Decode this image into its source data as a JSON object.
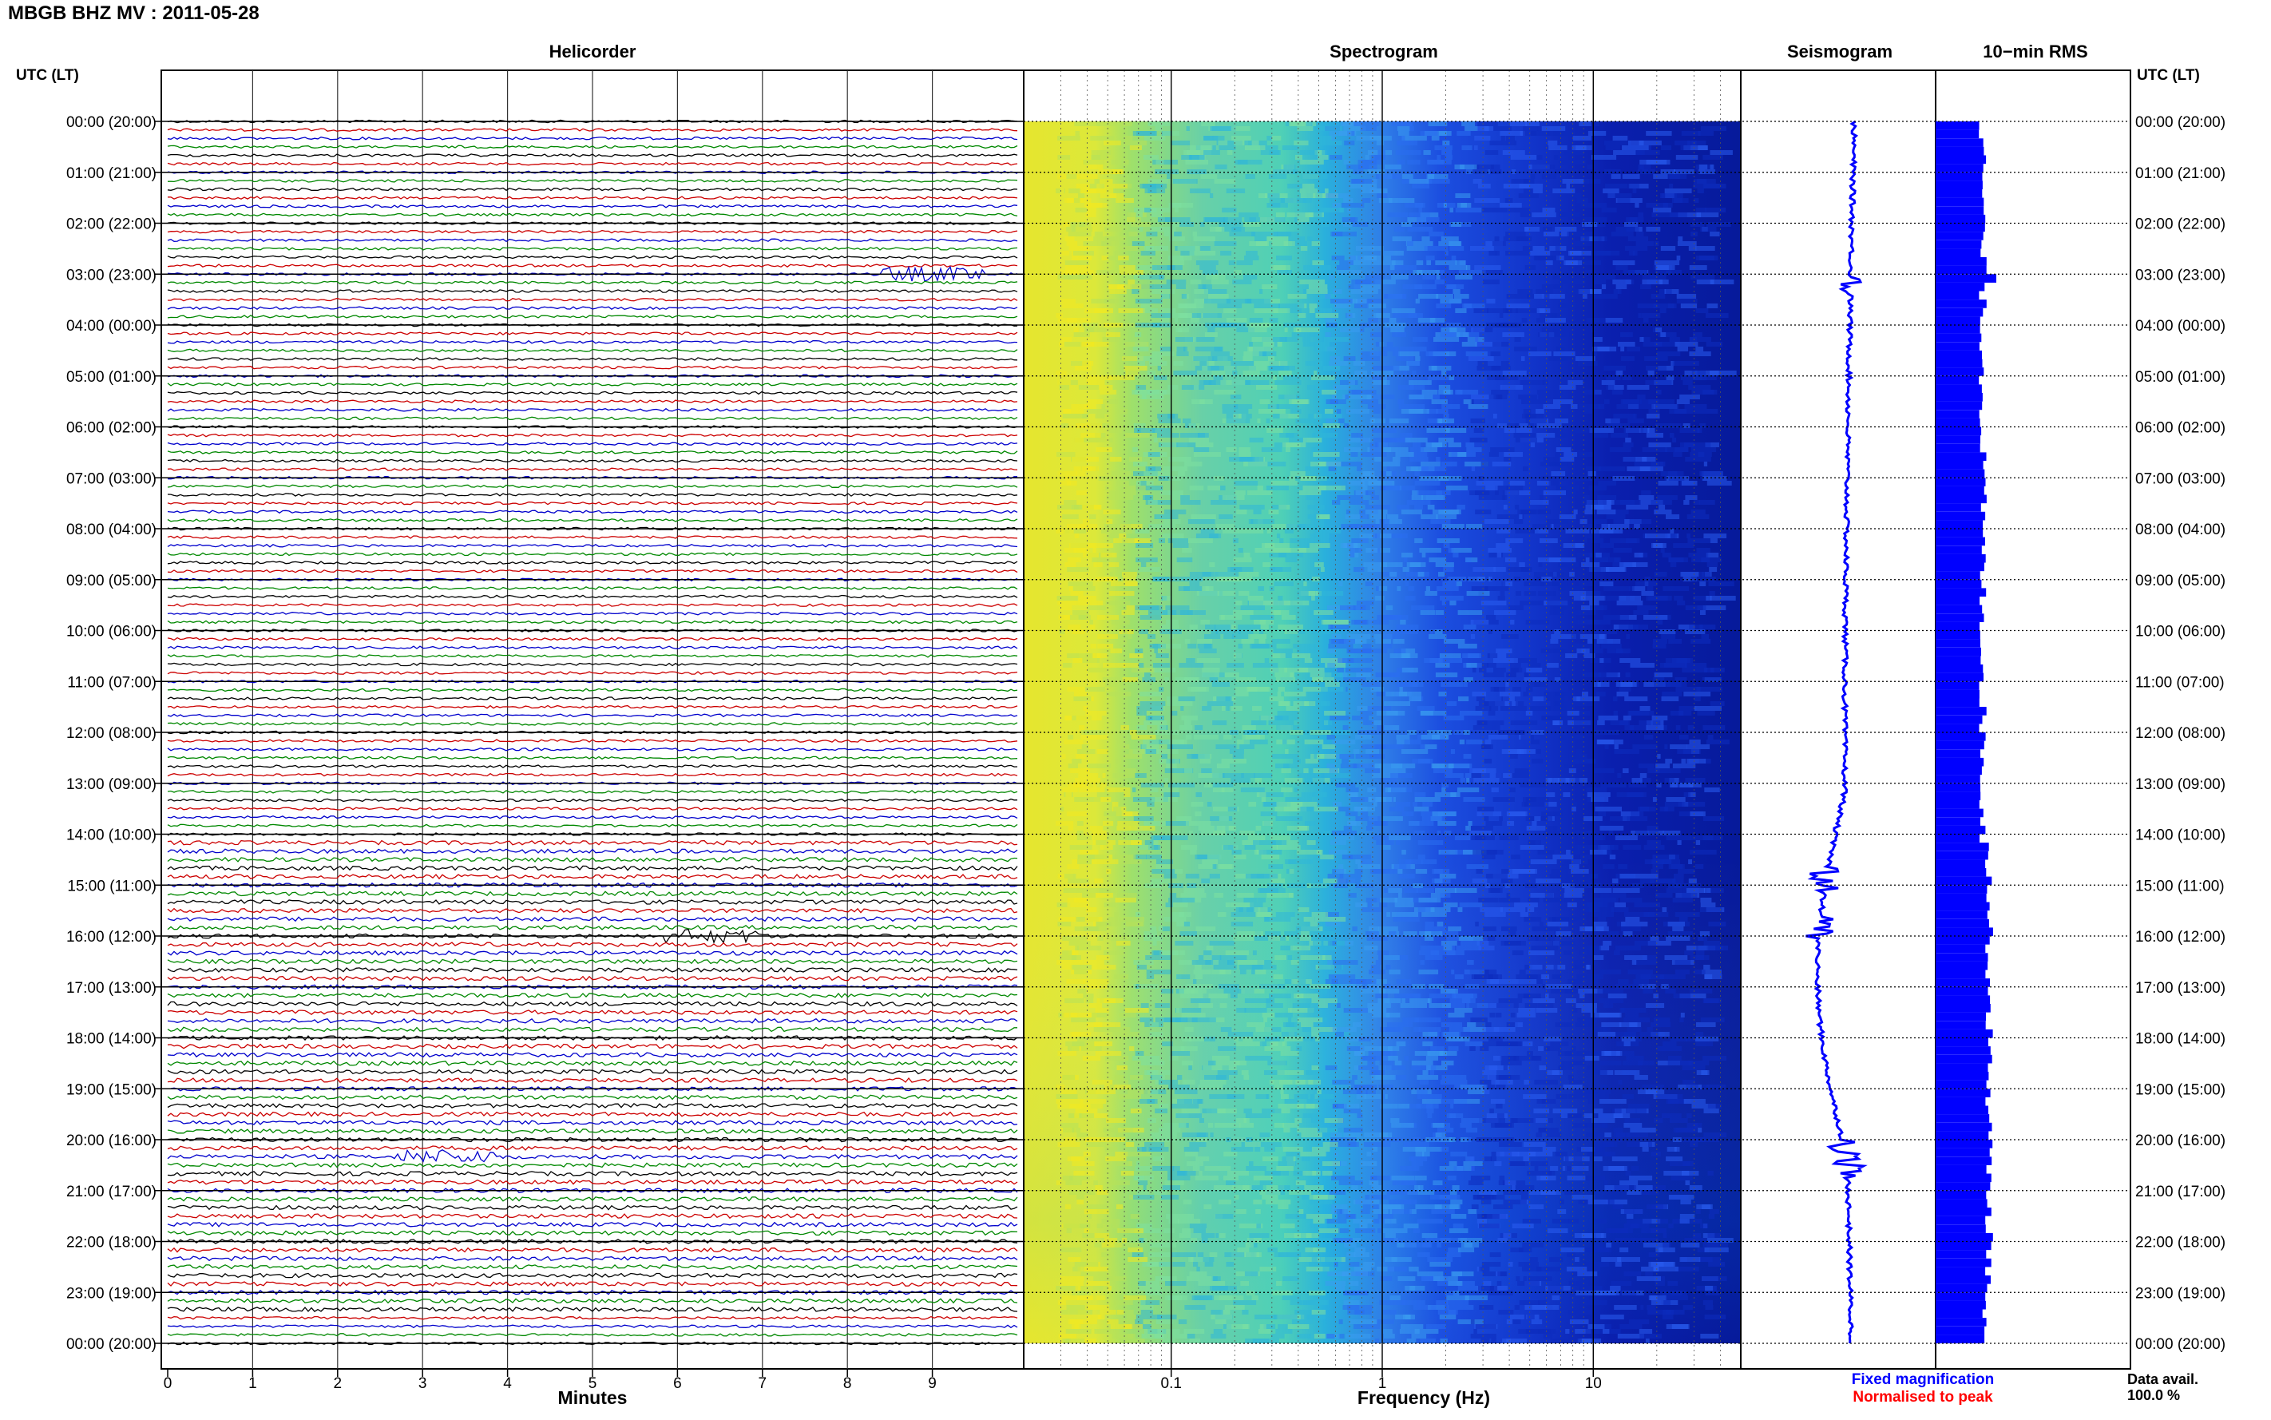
{
  "header": {
    "title": "MBGB BHZ MV : 2011‐05‐28"
  },
  "panels": {
    "helicorder": "Helicorder",
    "spectrogram": "Spectrogram",
    "seismogram": "Seismogram",
    "rms": "10−min RMS"
  },
  "left_axis_label": "UTC (LT)",
  "right_axis_label": "UTC (LT)",
  "legend": {
    "fixed": "Fixed magnification",
    "normalised": "Normalised to peak",
    "fixed_color": "#0000ff",
    "normalised_color": "#ff0000"
  },
  "data_avail": {
    "label": "Data avail.",
    "value": "100.0 %"
  },
  "colors": {
    "trace_cycle": [
      "#000000",
      "#cc0000",
      "#0000cc",
      "#008800"
    ],
    "rms_bar": "#0000ff",
    "seismogram_trace": "#0000ff"
  },
  "chart_data": [
    {
      "type": "line",
      "name": "helicorder",
      "title": "Helicorder",
      "xlabel": "Minutes",
      "ylabel": "UTC (LT)",
      "xlim": [
        0,
        10
      ],
      "x_ticks": [
        "0",
        "1",
        "2",
        "3",
        "4",
        "5",
        "6",
        "7",
        "8",
        "9"
      ],
      "y_ticks": [
        "00:00 (20:00)",
        "01:00 (21:00)",
        "02:00 (22:00)",
        "03:00 (23:00)",
        "04:00 (00:00)",
        "05:00 (01:00)",
        "06:00 (02:00)",
        "07:00 (03:00)",
        "08:00 (04:00)",
        "09:00 (05:00)",
        "10:00 (06:00)",
        "11:00 (07:00)",
        "12:00 (08:00)",
        "13:00 (09:00)",
        "14:00 (10:00)",
        "15:00 (11:00)",
        "16:00 (12:00)",
        "17:00 (13:00)",
        "18:00 (14:00)",
        "19:00 (15:00)",
        "20:00 (16:00)",
        "21:00 (17:00)",
        "22:00 (18:00)",
        "23:00 (19:00)",
        "00:00 (20:00)"
      ],
      "lines_per_hour": 6,
      "events": [
        {
          "hour": 3.0,
          "minute": 9.0
        },
        {
          "hour": 15.1,
          "minute": 5.6
        },
        {
          "hour": 16.0,
          "minute": 6.4
        },
        {
          "hour": 20.3,
          "minute": 3.3
        }
      ]
    },
    {
      "type": "heatmap",
      "name": "spectrogram",
      "title": "Spectrogram",
      "xlabel": "Frequency (Hz)",
      "x_scale": "log",
      "xlim": [
        0.02,
        50
      ],
      "x_ticks": [
        "0.1",
        "1",
        "10"
      ]
    },
    {
      "type": "line",
      "name": "seismogram",
      "title": "Seismogram"
    },
    {
      "type": "bar",
      "name": "rms",
      "title": "10−min RMS",
      "orientation": "horizontal"
    }
  ]
}
